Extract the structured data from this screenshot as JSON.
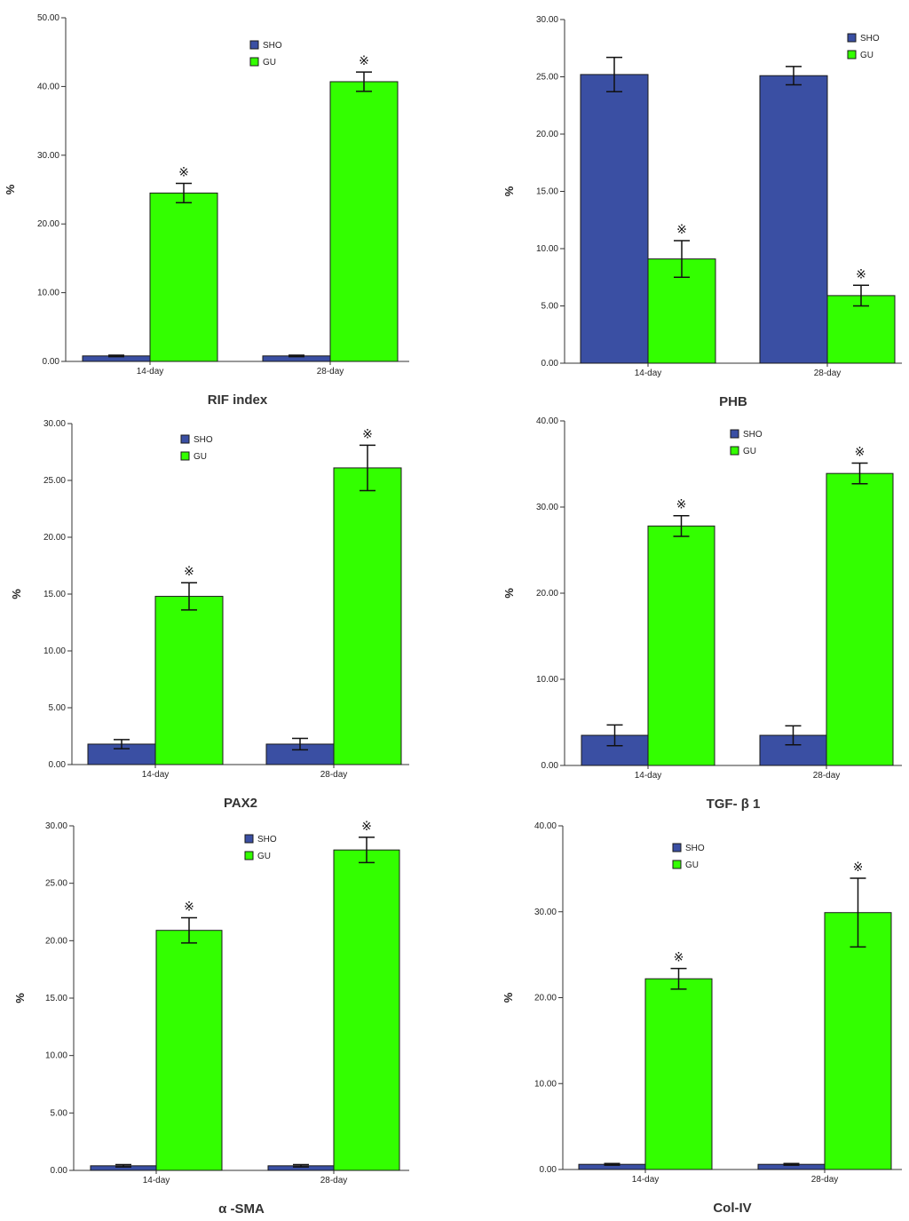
{
  "colors": {
    "SHO": "#3a4fa3",
    "GU": "#33ff00",
    "axis": "#333333",
    "error": "#111111"
  },
  "significance_marker": "※",
  "chart_data": [
    {
      "type": "bar",
      "title": "RIF index",
      "ylabel": "%",
      "categories": [
        "14-day",
        "28-day"
      ],
      "ylim": [
        0,
        50
      ],
      "yticks": [
        "0.00",
        "10.00",
        "20.00",
        "30.00",
        "40.00",
        "50.00"
      ],
      "legend": [
        "SHO",
        "GU"
      ],
      "series": [
        {
          "name": "SHO",
          "values": [
            0.8,
            0.8
          ],
          "errors": [
            0.1,
            0.1
          ],
          "significant": [
            false,
            false
          ]
        },
        {
          "name": "GU",
          "values": [
            24.5,
            40.7
          ],
          "errors": [
            1.4,
            1.4
          ],
          "significant": [
            true,
            true
          ]
        }
      ]
    },
    {
      "type": "bar",
      "title": "PHB",
      "ylabel": "%",
      "categories": [
        "14-day",
        "28-day"
      ],
      "ylim": [
        0,
        30
      ],
      "yticks": [
        "0.00",
        "5.00",
        "10.00",
        "15.00",
        "20.00",
        "25.00",
        "30.00"
      ],
      "legend": [
        "SHO",
        "GU"
      ],
      "series": [
        {
          "name": "SHO",
          "values": [
            25.2,
            25.1
          ],
          "errors": [
            1.5,
            0.8
          ],
          "significant": [
            false,
            false
          ]
        },
        {
          "name": "GU",
          "values": [
            9.1,
            5.9
          ],
          "errors": [
            1.6,
            0.9
          ],
          "significant": [
            true,
            true
          ]
        }
      ]
    },
    {
      "type": "bar",
      "title": "PAX2",
      "ylabel": "%",
      "categories": [
        "14-day",
        "28-day"
      ],
      "ylim": [
        0,
        30
      ],
      "yticks": [
        "0.00",
        "5.00",
        "10.00",
        "15.00",
        "20.00",
        "25.00",
        "30.00"
      ],
      "legend": [
        "SHO",
        "GU"
      ],
      "series": [
        {
          "name": "SHO",
          "values": [
            1.8,
            1.8
          ],
          "errors": [
            0.4,
            0.5
          ],
          "significant": [
            false,
            false
          ]
        },
        {
          "name": "GU",
          "values": [
            14.8,
            26.1
          ],
          "errors": [
            1.2,
            2.0
          ],
          "significant": [
            true,
            true
          ]
        }
      ]
    },
    {
      "type": "bar",
      "title": "TGF- β 1",
      "ylabel": "%",
      "categories": [
        "14-day",
        "28-day"
      ],
      "ylim": [
        0,
        40
      ],
      "yticks": [
        "0.00",
        "10.00",
        "20.00",
        "30.00",
        "40.00"
      ],
      "legend": [
        "SHO",
        "GU"
      ],
      "series": [
        {
          "name": "SHO",
          "values": [
            3.5,
            3.5
          ],
          "errors": [
            1.2,
            1.1
          ],
          "significant": [
            false,
            false
          ]
        },
        {
          "name": "GU",
          "values": [
            27.8,
            33.9
          ],
          "errors": [
            1.2,
            1.2
          ],
          "significant": [
            true,
            true
          ]
        }
      ]
    },
    {
      "type": "bar",
      "title": "α -SMA",
      "ylabel": "%",
      "categories": [
        "14-day",
        "28-day"
      ],
      "ylim": [
        0,
        30
      ],
      "yticks": [
        "0.00",
        "5.00",
        "10.00",
        "15.00",
        "20.00",
        "25.00",
        "30.00"
      ],
      "legend": [
        "SHO",
        "GU"
      ],
      "series": [
        {
          "name": "SHO",
          "values": [
            0.4,
            0.4
          ],
          "errors": [
            0.1,
            0.1
          ],
          "significant": [
            false,
            false
          ]
        },
        {
          "name": "GU",
          "values": [
            20.9,
            27.9
          ],
          "errors": [
            1.1,
            1.1
          ],
          "significant": [
            true,
            true
          ]
        }
      ]
    },
    {
      "type": "bar",
      "title": "Col-IV",
      "ylabel": "%",
      "categories": [
        "14-day",
        "28-day"
      ],
      "ylim": [
        0,
        40
      ],
      "yticks": [
        "0.00",
        "10.00",
        "20.00",
        "30.00",
        "40.00"
      ],
      "legend": [
        "SHO",
        "GU"
      ],
      "series": [
        {
          "name": "SHO",
          "values": [
            0.6,
            0.6
          ],
          "errors": [
            0.1,
            0.1
          ],
          "significant": [
            false,
            false
          ]
        },
        {
          "name": "GU",
          "values": [
            22.2,
            29.9
          ],
          "errors": [
            1.2,
            4.0
          ],
          "significant": [
            true,
            true
          ]
        }
      ]
    }
  ]
}
